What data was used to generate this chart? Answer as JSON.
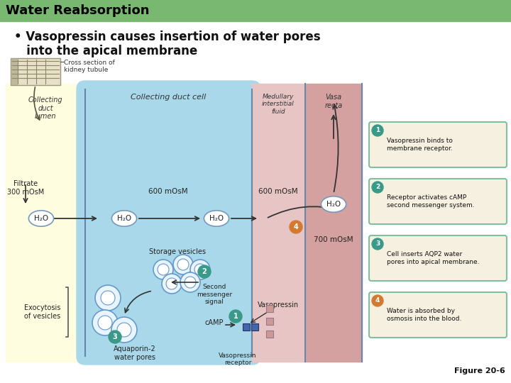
{
  "title": "Water Reabsorption",
  "title_bg": "#78b870",
  "title_color": "#000000",
  "bullet_line1": "• Vasopressin causes insertion of water pores",
  "bullet_line2": "   into the apical membrane",
  "figure_label": "Figure 20-6",
  "cross_section_label": "Cross section of\nkidney tubule",
  "lumen_label": "Collecting\nduct\nlumen",
  "cell_label": "Collecting duct cell",
  "medullary_label": "Medullary\ninterstitial\nfluid",
  "vasa_label": "Vasa\nrecta",
  "filtrate_label": "Filtrate\n300 mOsM",
  "osm600a": "600 mOsM",
  "osm600b": "600 mOsM",
  "osm700": "700 mOsM",
  "h2o": "H₂O",
  "storage_label": "Storage vesicles",
  "exocytosis_label": "Exocytosis\nof vesicles",
  "aquaporin_label": "Aquaporin-2\nwater pores",
  "second_msg_label": "Second\nmessenger\nsignal",
  "camp_label": "cAMP",
  "vasopressin_label": "Vasopressin",
  "vp_receptor_label": "Vasopressin\nreceptor",
  "step1": "Vasopressin binds to\nmembrane receptor.",
  "step2": "Receptor activates cAMP\nsecond messenger system.",
  "step3": "Cell inserts AQP2 water\npores into apical membrane.",
  "step4": "Water is absorbed by\nosmosis into the blood.",
  "colors": {
    "yellow": "#fffde0",
    "blue_light": "#c5e8f5",
    "blue_cell": "#a8d8ea",
    "pink_interstitial": "#e8c5c5",
    "pink_vasa": "#d4a0a0",
    "teal_circle": "#3a9a8a",
    "orange_circle": "#d47a30",
    "step_box_bg": "#f5f0e0",
    "step_box_border": "#80c0a0",
    "membrane_line": "#6688aa",
    "vesicle_fill": "#e8f4ff",
    "vesicle_edge": "#6699cc",
    "arrow": "#333333",
    "dark_blue_sq": "#4466aa",
    "pink_sq": "#cc9999"
  }
}
